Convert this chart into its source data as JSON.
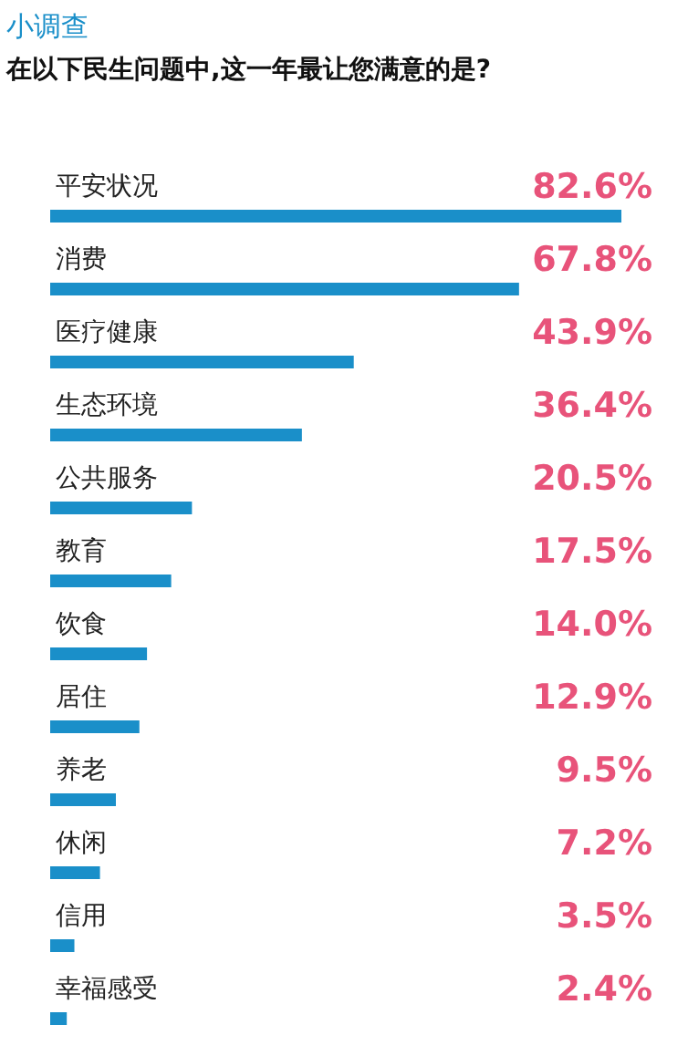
{
  "chart_data": {
    "type": "bar",
    "orientation": "horizontal",
    "title": "小调查",
    "subtitle": "在以下民生问题中,这一年最让您满意的是?",
    "categories": [
      "平安状况",
      "消费",
      "医疗健康",
      "生态环境",
      "公共服务",
      "教育",
      "饮食",
      "居住",
      "养老",
      "休闲",
      "信用",
      "幸福感受"
    ],
    "values": [
      82.6,
      67.8,
      43.9,
      36.4,
      20.5,
      17.5,
      14.0,
      12.9,
      9.5,
      7.2,
      3.5,
      2.4
    ],
    "value_labels": [
      "82.6%",
      "67.8%",
      "43.9%",
      "36.4%",
      "20.5%",
      "17.5%",
      "14.0%",
      "12.9%",
      "9.5%",
      "7.2%",
      "3.5%",
      "2.4%"
    ],
    "color": "#1a8fc9",
    "grid": false
  }
}
